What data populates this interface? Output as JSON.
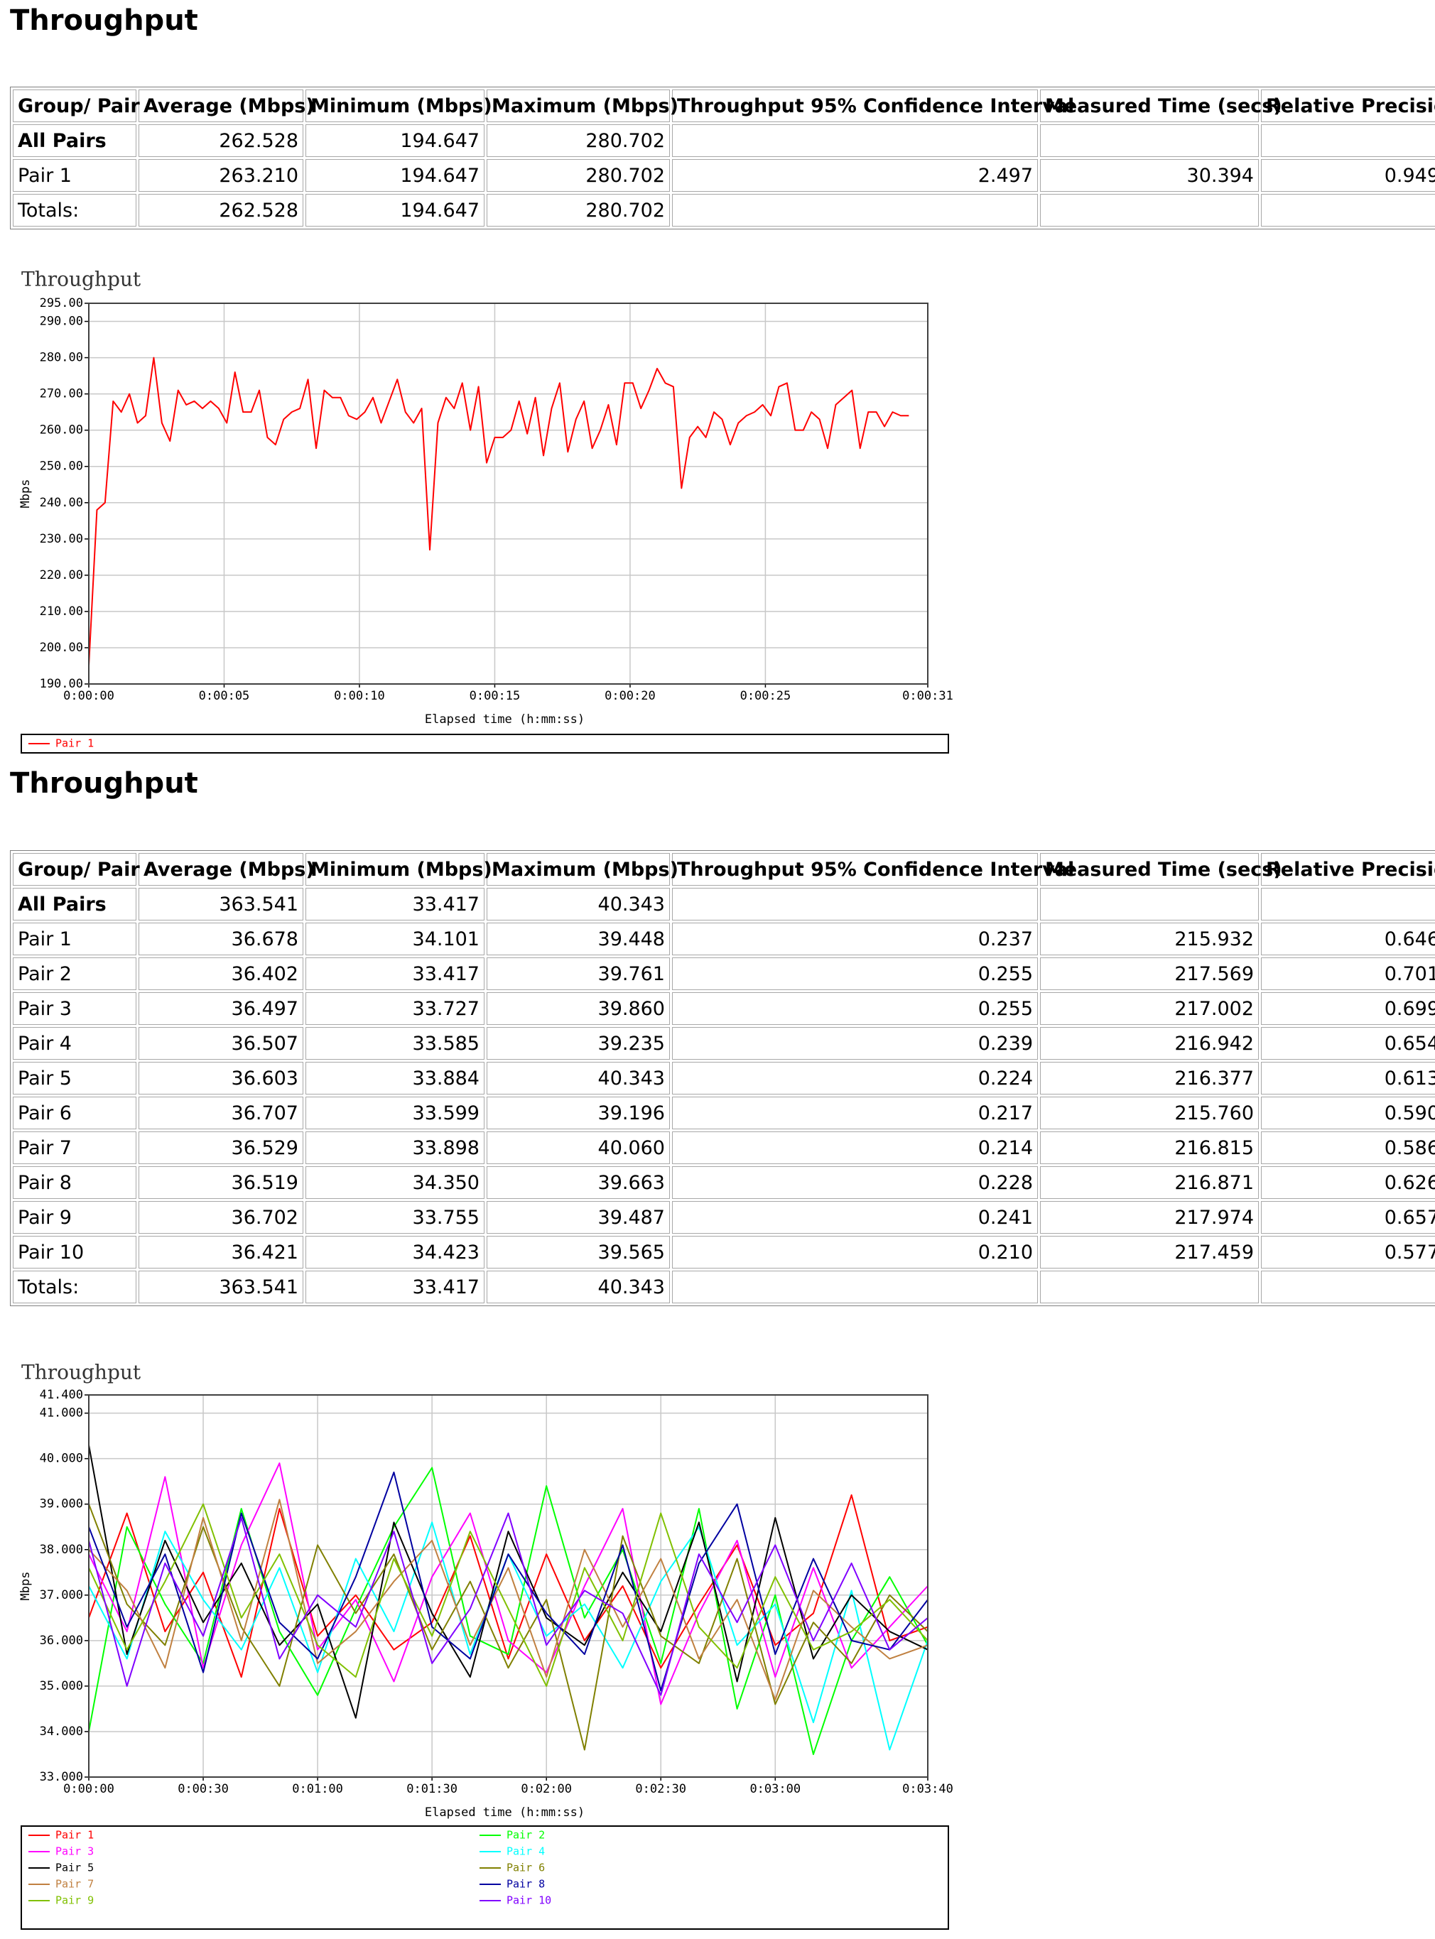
{
  "sections": [
    {
      "title": "Throughput",
      "table": {
        "header": [
          "Group/ Pair",
          "Average (Mbps)",
          "Minimum (Mbps)",
          "Maximum (Mbps)",
          "Throughput 95% Confidence Interval",
          "Measured Time (secs)",
          "Relative Precision"
        ],
        "rows": [
          [
            "All Pairs",
            "262.528",
            "194.647",
            "280.702",
            "",
            "",
            ""
          ],
          [
            "Pair 1",
            "263.210",
            "194.647",
            "280.702",
            "2.497",
            "30.394",
            "0.949"
          ],
          [
            "Totals:",
            "262.528",
            "194.647",
            "280.702",
            "",
            "",
            ""
          ]
        ]
      },
      "chart": {
        "type": "line",
        "title": "Throughput",
        "xlabel": "Elapsed time (h:mm:ss)",
        "ylabel": "Mbps",
        "grid": true,
        "xlim": [
          0,
          31
        ],
        "xticks": [
          {
            "value": 0,
            "label": "0:00:00"
          },
          {
            "value": 5,
            "label": "0:00:05"
          },
          {
            "value": 10,
            "label": "0:00:10"
          },
          {
            "value": 15,
            "label": "0:00:15"
          },
          {
            "value": 20,
            "label": "0:00:20"
          },
          {
            "value": 25,
            "label": "0:00:25"
          },
          {
            "value": 31,
            "label": "0:00:31"
          }
        ],
        "ylim": [
          190,
          295
        ],
        "yticks": [
          {
            "value": 190,
            "label": "190.00"
          },
          {
            "value": 200,
            "label": "200.00"
          },
          {
            "value": 210,
            "label": "210.00"
          },
          {
            "value": 220,
            "label": "220.00"
          },
          {
            "value": 230,
            "label": "230.00"
          },
          {
            "value": 240,
            "label": "240.00"
          },
          {
            "value": 250,
            "label": "250.00"
          },
          {
            "value": 260,
            "label": "260.00"
          },
          {
            "value": 270,
            "label": "270.00"
          },
          {
            "value": 280,
            "label": "280.00"
          },
          {
            "value": 290,
            "label": "290.00"
          },
          {
            "value": 295,
            "label": "295.00"
          }
        ],
        "x": [
          0,
          0.3,
          0.6,
          0.9,
          1.2,
          1.5,
          1.8,
          2.1,
          2.4,
          2.7,
          3,
          3.3,
          3.6,
          3.9,
          4.2,
          4.5,
          4.8,
          5.1,
          5.4,
          5.7,
          6,
          6.3,
          6.6,
          6.9,
          7.2,
          7.5,
          7.8,
          8.1,
          8.4,
          8.7,
          9,
          9.3,
          9.6,
          9.9,
          10.2,
          10.5,
          10.8,
          11.1,
          11.4,
          11.7,
          12,
          12.3,
          12.6,
          12.9,
          13.2,
          13.5,
          13.8,
          14.1,
          14.4,
          14.7,
          15,
          15.3,
          15.6,
          15.9,
          16.2,
          16.5,
          16.8,
          17.1,
          17.4,
          17.7,
          18,
          18.3,
          18.6,
          18.9,
          19.2,
          19.5,
          19.8,
          20.1,
          20.4,
          20.7,
          21,
          21.3,
          21.6,
          21.9,
          22.2,
          22.5,
          22.8,
          23.1,
          23.4,
          23.7,
          24,
          24.3,
          24.6,
          24.9,
          25.2,
          25.5,
          25.8,
          26.1,
          26.4,
          26.7,
          27,
          27.3,
          27.6,
          27.9,
          28.2,
          28.5,
          28.8,
          29.1,
          29.4,
          29.7,
          30,
          30.3
        ],
        "series": [
          {
            "name": "Pair 1",
            "color": "#ff0000",
            "values": [
              195,
              238,
              240,
              268,
              265,
              270,
              262,
              264,
              280,
              262,
              257,
              271,
              267,
              268,
              266,
              268,
              266,
              262,
              276,
              265,
              265,
              271,
              258,
              256,
              263,
              265,
              266,
              274,
              255,
              271,
              269,
              269,
              264,
              263,
              265,
              269,
              262,
              268,
              274,
              265,
              262,
              266,
              227,
              262,
              269,
              266,
              273,
              260,
              272,
              251,
              258,
              258,
              260,
              268,
              259,
              269,
              253,
              266,
              273,
              254,
              263,
              268,
              255,
              260,
              267,
              256,
              273,
              273,
              266,
              271,
              277,
              273,
              272,
              244,
              258,
              261,
              258,
              265,
              263,
              256,
              262,
              264,
              265,
              267,
              264,
              272,
              273,
              260,
              260,
              265,
              263,
              255,
              267,
              269,
              271,
              255,
              265,
              265,
              261,
              265,
              264,
              264
            ]
          }
        ]
      }
    },
    {
      "title": "Throughput",
      "table": {
        "header": [
          "Group/ Pair",
          "Average (Mbps)",
          "Minimum (Mbps)",
          "Maximum (Mbps)",
          "Throughput 95% Confidence Interval",
          "Measured Time (secs)",
          "Relative Precision"
        ],
        "rows": [
          [
            "All Pairs",
            "363.541",
            "33.417",
            "40.343",
            "",
            "",
            ""
          ],
          [
            "Pair 1",
            "36.678",
            "34.101",
            "39.448",
            "0.237",
            "215.932",
            "0.646"
          ],
          [
            "Pair 2",
            "36.402",
            "33.417",
            "39.761",
            "0.255",
            "217.569",
            "0.701"
          ],
          [
            "Pair 3",
            "36.497",
            "33.727",
            "39.860",
            "0.255",
            "217.002",
            "0.699"
          ],
          [
            "Pair 4",
            "36.507",
            "33.585",
            "39.235",
            "0.239",
            "216.942",
            "0.654"
          ],
          [
            "Pair 5",
            "36.603",
            "33.884",
            "40.343",
            "0.224",
            "216.377",
            "0.613"
          ],
          [
            "Pair 6",
            "36.707",
            "33.599",
            "39.196",
            "0.217",
            "215.760",
            "0.590"
          ],
          [
            "Pair 7",
            "36.529",
            "33.898",
            "40.060",
            "0.214",
            "216.815",
            "0.586"
          ],
          [
            "Pair 8",
            "36.519",
            "34.350",
            "39.663",
            "0.228",
            "216.871",
            "0.626"
          ],
          [
            "Pair 9",
            "36.702",
            "33.755",
            "39.487",
            "0.241",
            "217.974",
            "0.657"
          ],
          [
            "Pair 10",
            "36.421",
            "34.423",
            "39.565",
            "0.210",
            "217.459",
            "0.577"
          ],
          [
            "Totals:",
            "363.541",
            "33.417",
            "40.343",
            "",
            "",
            ""
          ]
        ]
      },
      "chart": {
        "type": "line",
        "title": "Throughput",
        "xlabel": "Elapsed time (h:mm:ss)",
        "ylabel": "Mbps",
        "grid": true,
        "xlim": [
          0,
          220
        ],
        "xticks": [
          {
            "value": 0,
            "label": "0:00:00"
          },
          {
            "value": 30,
            "label": "0:00:30"
          },
          {
            "value": 60,
            "label": "0:01:00"
          },
          {
            "value": 90,
            "label": "0:01:30"
          },
          {
            "value": 120,
            "label": "0:02:00"
          },
          {
            "value": 150,
            "label": "0:02:30"
          },
          {
            "value": 180,
            "label": "0:03:00"
          },
          {
            "value": 220,
            "label": "0:03:40"
          }
        ],
        "ylim": [
          33,
          41.4
        ],
        "yticks": [
          {
            "value": 33,
            "label": "33.000"
          },
          {
            "value": 34,
            "label": "34.000"
          },
          {
            "value": 35,
            "label": "35.000"
          },
          {
            "value": 36,
            "label": "36.000"
          },
          {
            "value": 37,
            "label": "37.000"
          },
          {
            "value": 38,
            "label": "38.000"
          },
          {
            "value": 39,
            "label": "39.000"
          },
          {
            "value": 40,
            "label": "40.000"
          },
          {
            "value": 41,
            "label": "41.000"
          },
          {
            "value": 41.4,
            "label": "41.400"
          }
        ],
        "x": [
          0,
          10,
          20,
          30,
          40,
          50,
          60,
          70,
          80,
          90,
          100,
          110,
          120,
          130,
          140,
          150,
          160,
          170,
          180,
          190,
          200,
          210,
          220
        ],
        "series": [
          {
            "name": "Pair 1",
            "color": "#ff0000",
            "values": [
              36.5,
              38.8,
              36.2,
              37.5,
              35.2,
              38.9,
              36.1,
              37.0,
              35.8,
              36.4,
              38.3,
              35.6,
              37.9,
              36.0,
              37.2,
              35.4,
              36.8,
              38.1,
              35.9,
              36.6,
              39.2,
              36.0,
              36.3
            ]
          },
          {
            "name": "Pair 2",
            "color": "#00ff00",
            "values": [
              34.0,
              38.5,
              36.8,
              35.5,
              38.9,
              36.2,
              34.8,
              36.7,
              38.5,
              39.8,
              36.1,
              35.7,
              39.4,
              36.5,
              38.0,
              35.5,
              38.9,
              34.5,
              37.0,
              33.5,
              36.0,
              37.4,
              35.9
            ]
          },
          {
            "name": "Pair 3",
            "color": "#ff00ff",
            "values": [
              37.9,
              36.2,
              39.6,
              35.4,
              38.1,
              39.9,
              35.8,
              36.9,
              35.1,
              37.4,
              38.8,
              36.0,
              35.3,
              37.2,
              38.9,
              34.6,
              36.6,
              38.2,
              35.2,
              37.6,
              35.4,
              36.3,
              37.2
            ]
          },
          {
            "name": "Pair 4",
            "color": "#00ffff",
            "values": [
              37.2,
              35.6,
              38.4,
              36.9,
              35.8,
              37.6,
              35.3,
              37.8,
              36.2,
              38.6,
              35.7,
              37.9,
              36.1,
              36.8,
              35.4,
              37.3,
              38.5,
              35.9,
              36.8,
              34.2,
              37.1,
              33.6,
              36.0
            ]
          },
          {
            "name": "Pair 5",
            "color": "#000000",
            "values": [
              40.3,
              35.7,
              38.2,
              36.4,
              37.7,
              35.9,
              36.8,
              34.3,
              38.6,
              36.6,
              35.2,
              38.4,
              36.5,
              35.9,
              37.5,
              36.2,
              38.6,
              35.1,
              38.7,
              35.6,
              37.0,
              36.2,
              35.8
            ]
          },
          {
            "name": "Pair 6",
            "color": "#808000",
            "values": [
              39.0,
              36.8,
              35.9,
              38.5,
              36.3,
              35.0,
              38.1,
              36.6,
              37.9,
              35.8,
              37.3,
              35.4,
              36.9,
              33.6,
              38.3,
              36.1,
              35.5,
              37.8,
              34.6,
              36.4,
              35.5,
              37.0,
              36.2
            ]
          },
          {
            "name": "Pair 7",
            "color": "#c08040",
            "values": [
              38.0,
              37.1,
              35.4,
              38.7,
              36.0,
              39.1,
              35.5,
              36.2,
              37.3,
              38.2,
              35.9,
              37.6,
              35.2,
              38.0,
              36.3,
              37.8,
              35.6,
              36.9,
              34.7,
              37.1,
              36.3,
              35.6,
              35.9
            ]
          },
          {
            "name": "Pair 8",
            "color": "#0000a0",
            "values": [
              38.5,
              36.3,
              37.9,
              35.3,
              38.8,
              36.4,
              35.6,
              37.4,
              39.7,
              36.3,
              35.6,
              37.9,
              36.6,
              35.7,
              38.1,
              34.9,
              37.7,
              39.0,
              35.7,
              37.8,
              36.0,
              35.8,
              36.9
            ]
          },
          {
            "name": "Pair 9",
            "color": "#80c000",
            "values": [
              37.6,
              35.8,
              37.3,
              39.0,
              36.5,
              37.9,
              35.9,
              35.2,
              37.8,
              36.1,
              38.4,
              36.7,
              35.0,
              37.6,
              36.0,
              38.8,
              36.3,
              35.4,
              37.4,
              35.8,
              36.2,
              36.9,
              36.0
            ]
          },
          {
            "name": "Pair 10",
            "color": "#8000ff",
            "values": [
              38.2,
              35.0,
              37.7,
              36.1,
              38.7,
              35.6,
              37.0,
              36.3,
              38.4,
              35.5,
              36.7,
              38.8,
              35.9,
              37.1,
              36.6,
              34.8,
              37.9,
              36.4,
              38.1,
              36.0,
              37.7,
              35.8,
              36.5
            ]
          }
        ]
      }
    }
  ]
}
